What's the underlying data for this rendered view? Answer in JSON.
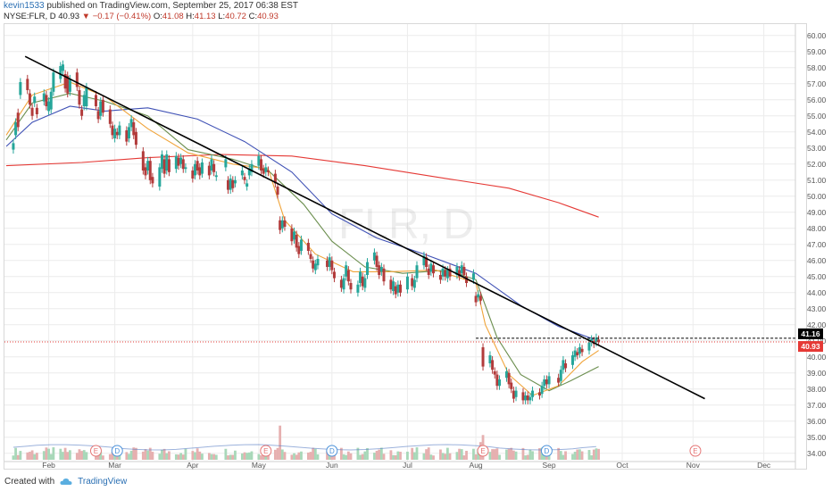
{
  "header": {
    "user": "kevin1533",
    "published_text": "published on TradingView.com, September 25, 2017 06:38 EST",
    "symbol": "NYSE:FLR, D",
    "last": "40.93",
    "change": "▼ −0.17 (−0.41%)",
    "o_label": "O:",
    "o_val": "41.08",
    "h_label": "H:",
    "h_val": "41.13",
    "l_label": "L:",
    "l_val": "40.72",
    "c_label": "C:",
    "c_val": "40.93"
  },
  "footer": {
    "created_with": "Created with",
    "brand": "TradingView"
  },
  "watermark": "FLR, D",
  "chart_data": {
    "type": "candlestick",
    "ylim": [
      33.6,
      60.6
    ],
    "y_ticks": [
      "60.00",
      "59.00",
      "58.00",
      "57.00",
      "56.00",
      "55.00",
      "54.00",
      "53.00",
      "52.00",
      "51.00",
      "50.00",
      "49.00",
      "48.00",
      "47.00",
      "46.00",
      "45.00",
      "44.00",
      "43.00",
      "42.00",
      "41.00",
      "40.00",
      "39.00",
      "38.00",
      "37.00",
      "36.00",
      "35.00",
      "34.00"
    ],
    "x_ticks": [
      {
        "label": "Feb",
        "date": "2017-02-01"
      },
      {
        "label": "Mar",
        "date": "2017-03-01"
      },
      {
        "label": "Apr",
        "date": "2017-04-03"
      },
      {
        "label": "May",
        "date": "2017-05-01"
      },
      {
        "label": "Jun",
        "date": "2017-06-01"
      },
      {
        "label": "Jul",
        "date": "2017-07-03"
      },
      {
        "label": "Aug",
        "date": "2017-08-01"
      },
      {
        "label": "Sep",
        "date": "2017-09-01"
      },
      {
        "label": "Oct",
        "date": "2017-10-02"
      },
      {
        "label": "Nov",
        "date": "2017-11-01"
      },
      {
        "label": "Dec",
        "date": "2017-12-01"
      }
    ],
    "price_tags": [
      {
        "value": "41.16",
        "color": "#000000"
      },
      {
        "value": "40.93",
        "color": "#e53935"
      }
    ],
    "trendline": {
      "start": {
        "date": "2017-01-22",
        "value": 58.7
      },
      "end": {
        "date": "2017-11-06",
        "value": 37.4
      },
      "color": "#000000"
    },
    "ma_lines": [
      {
        "color": "#e53935",
        "points": [
          [
            "2017-01-14",
            51.9
          ],
          [
            "2017-02-15",
            52.1
          ],
          [
            "2017-03-15",
            52.4
          ],
          [
            "2017-04-15",
            52.6
          ],
          [
            "2017-05-15",
            52.5
          ],
          [
            "2017-06-15",
            51.9
          ],
          [
            "2017-07-15",
            51.2
          ],
          [
            "2017-08-15",
            50.5
          ],
          [
            "2017-09-05",
            49.6
          ],
          [
            "2017-09-22",
            48.7
          ]
        ]
      },
      {
        "color": "#3f51b5",
        "points": [
          [
            "2017-01-14",
            53.1
          ],
          [
            "2017-01-25",
            54.6
          ],
          [
            "2017-02-10",
            55.6
          ],
          [
            "2017-02-25",
            55.3
          ],
          [
            "2017-03-15",
            55.5
          ],
          [
            "2017-04-05",
            54.8
          ],
          [
            "2017-04-25",
            53.4
          ],
          [
            "2017-05-15",
            51.5
          ],
          [
            "2017-06-01",
            48.9
          ],
          [
            "2017-06-20",
            47.4
          ],
          [
            "2017-07-10",
            46.4
          ],
          [
            "2017-08-01",
            45.2
          ],
          [
            "2017-08-20",
            43.2
          ],
          [
            "2017-09-05",
            41.9
          ],
          [
            "2017-09-20",
            41.1
          ]
        ]
      },
      {
        "color": "#6b8e4e",
        "points": [
          [
            "2017-01-14",
            53.5
          ],
          [
            "2017-01-25",
            55.8
          ],
          [
            "2017-02-10",
            56.4
          ],
          [
            "2017-02-25",
            55.9
          ],
          [
            "2017-03-15",
            55.0
          ],
          [
            "2017-04-01",
            52.9
          ],
          [
            "2017-04-20",
            52.3
          ],
          [
            "2017-05-05",
            51.6
          ],
          [
            "2017-05-20",
            49.5
          ],
          [
            "2017-06-01",
            47.2
          ],
          [
            "2017-06-15",
            45.6
          ],
          [
            "2017-07-01",
            45.2
          ],
          [
            "2017-07-20",
            45.4
          ],
          [
            "2017-08-01",
            44.8
          ],
          [
            "2017-08-10",
            41.2
          ],
          [
            "2017-08-20",
            38.9
          ],
          [
            "2017-09-01",
            37.9
          ],
          [
            "2017-09-10",
            38.5
          ],
          [
            "2017-09-22",
            39.4
          ]
        ]
      },
      {
        "color": "#f0a43a",
        "points": [
          [
            "2017-01-14",
            53.8
          ],
          [
            "2017-01-25",
            56.3
          ],
          [
            "2017-02-10",
            57.1
          ],
          [
            "2017-02-25",
            56.2
          ],
          [
            "2017-03-15",
            54.2
          ],
          [
            "2017-04-01",
            52.7
          ],
          [
            "2017-04-20",
            52.0
          ],
          [
            "2017-05-05",
            51.7
          ],
          [
            "2017-05-12",
            48.5
          ],
          [
            "2017-05-25",
            46.4
          ],
          [
            "2017-06-10",
            45.3
          ],
          [
            "2017-06-25",
            45.3
          ],
          [
            "2017-07-15",
            45.4
          ],
          [
            "2017-08-01",
            44.6
          ],
          [
            "2017-08-05",
            42.0
          ],
          [
            "2017-08-15",
            38.9
          ],
          [
            "2017-08-25",
            37.6
          ],
          [
            "2017-09-05",
            38.2
          ],
          [
            "2017-09-15",
            39.7
          ],
          [
            "2017-09-22",
            40.4
          ]
        ]
      }
    ],
    "candles": [
      [
        "2017-01-17",
        52.9,
        53.3
      ],
      [
        "2017-01-18",
        53.8,
        54.6
      ],
      [
        "2017-01-19",
        55.2,
        54.3
      ],
      [
        "2017-01-20",
        56.3,
        57.1
      ],
      [
        "2017-01-23",
        57.3,
        56.6
      ],
      [
        "2017-01-24",
        56.4,
        55.7
      ],
      [
        "2017-01-25",
        55.5,
        55.0
      ],
      [
        "2017-01-26",
        55.8,
        56.2
      ],
      [
        "2017-01-27",
        55.5,
        55.1
      ],
      [
        "2017-01-30",
        55.9,
        56.4
      ],
      [
        "2017-01-31",
        56.3,
        55.6
      ],
      [
        "2017-02-01",
        55.3,
        55.9
      ],
      [
        "2017-02-02",
        55.4,
        56.5
      ],
      [
        "2017-02-03",
        56.5,
        57.7
      ],
      [
        "2017-02-06",
        57.3,
        58.1
      ],
      [
        "2017-02-07",
        57.8,
        58.2
      ],
      [
        "2017-02-08",
        57.6,
        56.7
      ],
      [
        "2017-02-09",
        57.5,
        56.4
      ],
      [
        "2017-02-10",
        56.5,
        57.3
      ],
      [
        "2017-02-13",
        57.7,
        56.8
      ],
      [
        "2017-02-14",
        56.6,
        55.7
      ],
      [
        "2017-02-15",
        55.4,
        55.0
      ],
      [
        "2017-02-16",
        55.6,
        56.3
      ],
      [
        "2017-02-17",
        55.6,
        56.8
      ],
      [
        "2017-02-21",
        56.3,
        55.6
      ],
      [
        "2017-02-22",
        55.3,
        54.8
      ],
      [
        "2017-02-23",
        55.0,
        55.9
      ],
      [
        "2017-02-24",
        56.0,
        55.2
      ],
      [
        "2017-02-27",
        55.4,
        54.5
      ],
      [
        "2017-02-28",
        54.4,
        53.8
      ],
      [
        "2017-03-01",
        53.6,
        54.2
      ],
      [
        "2017-03-02",
        54.0,
        53.8
      ],
      [
        "2017-03-03",
        53.8,
        54.4
      ],
      [
        "2017-03-06",
        54.1,
        53.4
      ],
      [
        "2017-03-07",
        53.6,
        54.3
      ],
      [
        "2017-03-08",
        54.3,
        54.8
      ],
      [
        "2017-03-09",
        54.6,
        53.8
      ],
      [
        "2017-03-10",
        54.0,
        53.2
      ],
      [
        "2017-03-13",
        52.8,
        51.6
      ],
      [
        "2017-03-14",
        51.8,
        51.3
      ],
      [
        "2017-03-15",
        51.6,
        52.2
      ],
      [
        "2017-03-16",
        52.2,
        51.0
      ],
      [
        "2017-03-17",
        51.2,
        50.8
      ],
      [
        "2017-03-20",
        50.6,
        51.8
      ],
      [
        "2017-03-21",
        51.7,
        52.6
      ],
      [
        "2017-03-22",
        52.3,
        51.4
      ],
      [
        "2017-03-23",
        51.6,
        52.6
      ],
      [
        "2017-03-24",
        52.3,
        51.5
      ],
      [
        "2017-03-27",
        51.7,
        52.5
      ],
      [
        "2017-03-28",
        52.4,
        51.9
      ],
      [
        "2017-03-29",
        52.0,
        52.4
      ],
      [
        "2017-03-30",
        52.3,
        51.7
      ],
      [
        "2017-03-31",
        51.7,
        51.8
      ],
      [
        "2017-04-03",
        51.6,
        51.1
      ],
      [
        "2017-04-04",
        51.3,
        52.0
      ],
      [
        "2017-04-05",
        52.2,
        51.6
      ],
      [
        "2017-04-06",
        51.8,
        51.3
      ],
      [
        "2017-04-07",
        51.4,
        52.1
      ],
      [
        "2017-04-10",
        51.9,
        51.3
      ],
      [
        "2017-04-11",
        51.6,
        52.3
      ],
      [
        "2017-04-12",
        52.0,
        51.5
      ],
      [
        "2017-04-13",
        51.2,
        51.3
      ],
      [
        "2017-04-17",
        51.8,
        52.3
      ],
      [
        "2017-04-18",
        51.0,
        50.4
      ],
      [
        "2017-04-19",
        50.4,
        51.1
      ],
      [
        "2017-04-20",
        51.0,
        50.5
      ],
      [
        "2017-04-21",
        50.8,
        51.0
      ],
      [
        "2017-04-24",
        51.3,
        51.6
      ],
      [
        "2017-04-25",
        51.2,
        51.0
      ],
      [
        "2017-04-26",
        50.6,
        50.8
      ],
      [
        "2017-04-27",
        51.3,
        51.7
      ],
      [
        "2017-04-28",
        51.5,
        52.0
      ],
      [
        "2017-05-01",
        51.9,
        52.5
      ],
      [
        "2017-05-02",
        52.3,
        51.6
      ],
      [
        "2017-05-03",
        51.7,
        51.4
      ],
      [
        "2017-05-04",
        51.5,
        51.8
      ],
      [
        "2017-05-05",
        51.6,
        51.5
      ],
      [
        "2017-05-08",
        51.4,
        50.8
      ],
      [
        "2017-05-09",
        50.6,
        50.1
      ],
      [
        "2017-05-10",
        48.5,
        47.9
      ],
      [
        "2017-05-11",
        48.0,
        48.5
      ],
      [
        "2017-05-12",
        48.5,
        48.1
      ],
      [
        "2017-05-15",
        48.0,
        47.2
      ],
      [
        "2017-05-16",
        47.3,
        47.8
      ],
      [
        "2017-05-17",
        47.6,
        46.8
      ],
      [
        "2017-05-18",
        46.9,
        46.4
      ],
      [
        "2017-05-19",
        46.6,
        47.3
      ],
      [
        "2017-05-22",
        47.1,
        46.6
      ],
      [
        "2017-05-23",
        46.4,
        46.1
      ],
      [
        "2017-05-24",
        46.0,
        45.5
      ],
      [
        "2017-05-25",
        45.4,
        45.8
      ],
      [
        "2017-05-26",
        45.7,
        46.1
      ],
      [
        "2017-05-30",
        46.0,
        45.6
      ],
      [
        "2017-05-31",
        45.6,
        46.2
      ],
      [
        "2017-06-01",
        46.0,
        45.4
      ],
      [
        "2017-06-02",
        45.3,
        44.9
      ],
      [
        "2017-06-05",
        44.8,
        44.3
      ],
      [
        "2017-06-06",
        44.2,
        44.9
      ],
      [
        "2017-06-07",
        45.0,
        45.7
      ],
      [
        "2017-06-08",
        45.4,
        44.7
      ],
      [
        "2017-06-09",
        44.6,
        44.2
      ],
      [
        "2017-06-12",
        44.0,
        44.5
      ],
      [
        "2017-06-13",
        44.6,
        45.3
      ],
      [
        "2017-06-14",
        45.0,
        44.4
      ],
      [
        "2017-06-15",
        44.3,
        44.9
      ],
      [
        "2017-06-16",
        45.1,
        45.9
      ],
      [
        "2017-06-19",
        46.0,
        46.5
      ],
      [
        "2017-06-20",
        46.3,
        45.6
      ],
      [
        "2017-06-21",
        45.7,
        45.1
      ],
      [
        "2017-06-22",
        45.3,
        45.6
      ],
      [
        "2017-06-23",
        45.5,
        44.7
      ],
      [
        "2017-06-26",
        44.8,
        44.2
      ],
      [
        "2017-06-27",
        44.1,
        44.7
      ],
      [
        "2017-06-28",
        44.4,
        43.9
      ],
      [
        "2017-06-29",
        44.0,
        44.5
      ],
      [
        "2017-06-30",
        44.5,
        44.0
      ],
      [
        "2017-07-03",
        44.2,
        45.0
      ],
      [
        "2017-07-05",
        44.9,
        44.4
      ],
      [
        "2017-07-06",
        44.3,
        44.8
      ],
      [
        "2017-07-07",
        44.9,
        45.7
      ],
      [
        "2017-07-10",
        45.7,
        46.3
      ],
      [
        "2017-07-11",
        46.2,
        45.6
      ],
      [
        "2017-07-12",
        45.5,
        45.1
      ],
      [
        "2017-07-13",
        45.3,
        45.8
      ],
      [
        "2017-07-14",
        45.7,
        45.2
      ],
      [
        "2017-07-17",
        45.1,
        44.8
      ],
      [
        "2017-07-18",
        45.0,
        45.5
      ],
      [
        "2017-07-19",
        45.4,
        45.0
      ],
      [
        "2017-07-20",
        44.9,
        45.4
      ],
      [
        "2017-07-21",
        45.5,
        45.0
      ],
      [
        "2017-07-24",
        45.1,
        45.6
      ],
      [
        "2017-07-25",
        45.4,
        45.0
      ],
      [
        "2017-07-26",
        45.2,
        45.7
      ],
      [
        "2017-07-27",
        45.6,
        45.1
      ],
      [
        "2017-07-28",
        45.0,
        44.6
      ],
      [
        "2017-07-31",
        44.8,
        45.2
      ],
      [
        "2017-08-01",
        43.8,
        43.4
      ],
      [
        "2017-08-02",
        43.7,
        43.9
      ],
      [
        "2017-08-03",
        43.8,
        43.5
      ],
      [
        "2017-08-04",
        40.6,
        39.4
      ],
      [
        "2017-08-07",
        39.6,
        40.1
      ],
      [
        "2017-08-08",
        39.8,
        39.2
      ],
      [
        "2017-08-09",
        39.1,
        38.9
      ],
      [
        "2017-08-10",
        38.9,
        38.2
      ],
      [
        "2017-08-11",
        38.2,
        38.6
      ],
      [
        "2017-08-14",
        38.7,
        39.1
      ],
      [
        "2017-08-15",
        39.0,
        38.3
      ],
      [
        "2017-08-16",
        38.4,
        38.0
      ],
      [
        "2017-08-17",
        37.9,
        37.4
      ],
      [
        "2017-08-18",
        37.5,
        37.9
      ],
      [
        "2017-08-21",
        37.8,
        37.3
      ],
      [
        "2017-08-22",
        37.3,
        37.6
      ],
      [
        "2017-08-23",
        37.6,
        37.3
      ],
      [
        "2017-08-24",
        37.3,
        37.5
      ],
      [
        "2017-08-25",
        37.5,
        37.9
      ],
      [
        "2017-08-28",
        37.8,
        37.6
      ],
      [
        "2017-08-29",
        37.7,
        38.2
      ],
      [
        "2017-08-30",
        38.2,
        38.6
      ],
      [
        "2017-08-31",
        38.6,
        38.3
      ],
      [
        "2017-09-01",
        38.3,
        38.8
      ],
      [
        "2017-09-05",
        38.7,
        38.4
      ],
      [
        "2017-09-06",
        38.5,
        39.2
      ],
      [
        "2017-09-07",
        39.2,
        39.8
      ],
      [
        "2017-09-08",
        39.6,
        39.3
      ],
      [
        "2017-09-11",
        39.5,
        40.1
      ],
      [
        "2017-09-12",
        40.0,
        40.4
      ],
      [
        "2017-09-13",
        40.3,
        40.1
      ],
      [
        "2017-09-14",
        40.2,
        40.6
      ],
      [
        "2017-09-15",
        40.5,
        40.3
      ],
      [
        "2017-09-18",
        40.4,
        40.9
      ],
      [
        "2017-09-19",
        40.9,
        41.1
      ],
      [
        "2017-09-20",
        41.0,
        40.8
      ],
      [
        "2017-09-21",
        40.9,
        41.2
      ],
      [
        "2017-09-22",
        41.08,
        40.93
      ]
    ],
    "volume_mean_line": true,
    "events": [
      {
        "label": "E",
        "date": "2017-02-21",
        "color": "#e57373"
      },
      {
        "label": "D",
        "date": "2017-03-02",
        "color": "#4a90d9"
      },
      {
        "label": "E",
        "date": "2017-05-04",
        "color": "#e57373"
      },
      {
        "label": "D",
        "date": "2017-06-01",
        "color": "#4a90d9"
      },
      {
        "label": "E",
        "date": "2017-08-04",
        "color": "#e57373"
      },
      {
        "label": "D",
        "date": "2017-08-31",
        "color": "#4a90d9"
      },
      {
        "label": "E",
        "date": "2017-11-02",
        "color": "#e57373"
      }
    ]
  },
  "colors": {
    "up": "#26a69a",
    "down": "#b23b3b",
    "vol_up": "#a8d8b9",
    "vol_down": "#e6b0b0",
    "grid": "#ececec"
  }
}
